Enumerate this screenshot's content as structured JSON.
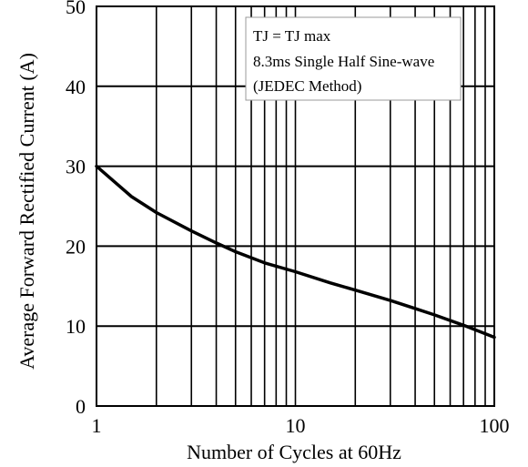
{
  "chart_data": {
    "type": "line",
    "title": "",
    "xlabel": "Number of Cycles at 60Hz",
    "ylabel": "Average Forward Rectified Current (A)",
    "x_scale": "log",
    "xlim": [
      1,
      100
    ],
    "ylim": [
      0,
      50
    ],
    "grid": true,
    "x_ticks": [
      {
        "value": 1,
        "label": "1"
      },
      {
        "value": 10,
        "label": "10"
      },
      {
        "value": 100,
        "label": "100"
      }
    ],
    "y_ticks": [
      {
        "value": 0,
        "label": "0"
      },
      {
        "value": 10,
        "label": "10"
      },
      {
        "value": 20,
        "label": "20"
      },
      {
        "value": 30,
        "label": "30"
      },
      {
        "value": 40,
        "label": "40"
      },
      {
        "value": 50,
        "label": "50"
      }
    ],
    "annotation": [
      "TJ = TJ max",
      "8.3ms Single Half Sine-wave",
      "(JEDEC Method)"
    ],
    "series": [
      {
        "x": [
          1,
          1.5,
          2,
          3,
          4,
          5,
          7,
          10,
          15,
          20,
          30,
          40,
          50,
          70,
          100
        ],
        "y": [
          30,
          26.2,
          24.2,
          21.9,
          20.4,
          19.3,
          17.9,
          16.8,
          15.4,
          14.5,
          13.2,
          12.2,
          11.4,
          10.1,
          8.6
        ]
      }
    ]
  }
}
